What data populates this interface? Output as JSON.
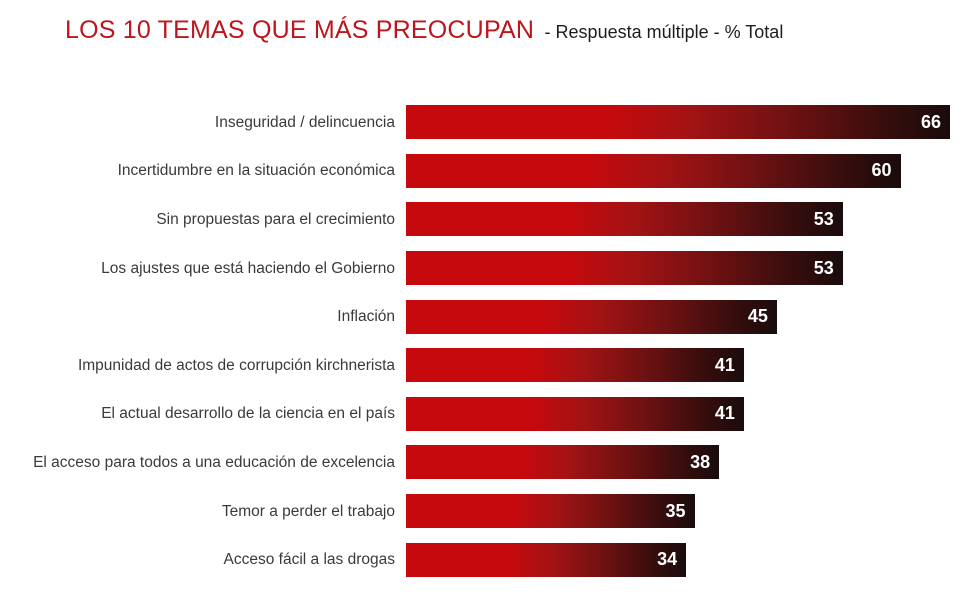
{
  "header": {
    "title": "LOS 10 TEMAS QUE MÁS PREOCUPAN",
    "subtitle": "- Respuesta múltiple - % Total"
  },
  "colors": {
    "title_red": "#be151d",
    "subtitle_black": "#1d1d1d",
    "category_label_gray": "#3a3a3a",
    "bar_gradient_start_red": "#c6090d",
    "bar_gradient_end_dark": "#190c0c",
    "value_label_white": "#ffffff",
    "background": "#ffffff"
  },
  "chart_data": {
    "type": "bar",
    "orientation": "horizontal",
    "title": "LOS 10 TEMAS QUE MÁS PREOCUPAN",
    "subtitle": "Respuesta múltiple - % Total",
    "categories": [
      "Inseguridad / delincuencia",
      "Incertidumbre en la situación económica",
      "Sin propuestas para el crecimiento",
      "Los ajustes que está haciendo el Gobierno",
      "Inflación",
      "Impunidad de actos de corrupción kirchnerista",
      "El actual desarrollo de la ciencia en el país",
      "El acceso para todos a una educación de excelencia",
      "Temor a perder el trabajo",
      "Acceso fácil a las drogas"
    ],
    "values": [
      66,
      60,
      53,
      53,
      45,
      41,
      41,
      38,
      35,
      34
    ],
    "xlabel": "",
    "ylabel": "",
    "xlim": [
      0,
      66
    ],
    "units": "% Total",
    "value_labels_shown": true,
    "grid": false,
    "legend": false
  }
}
